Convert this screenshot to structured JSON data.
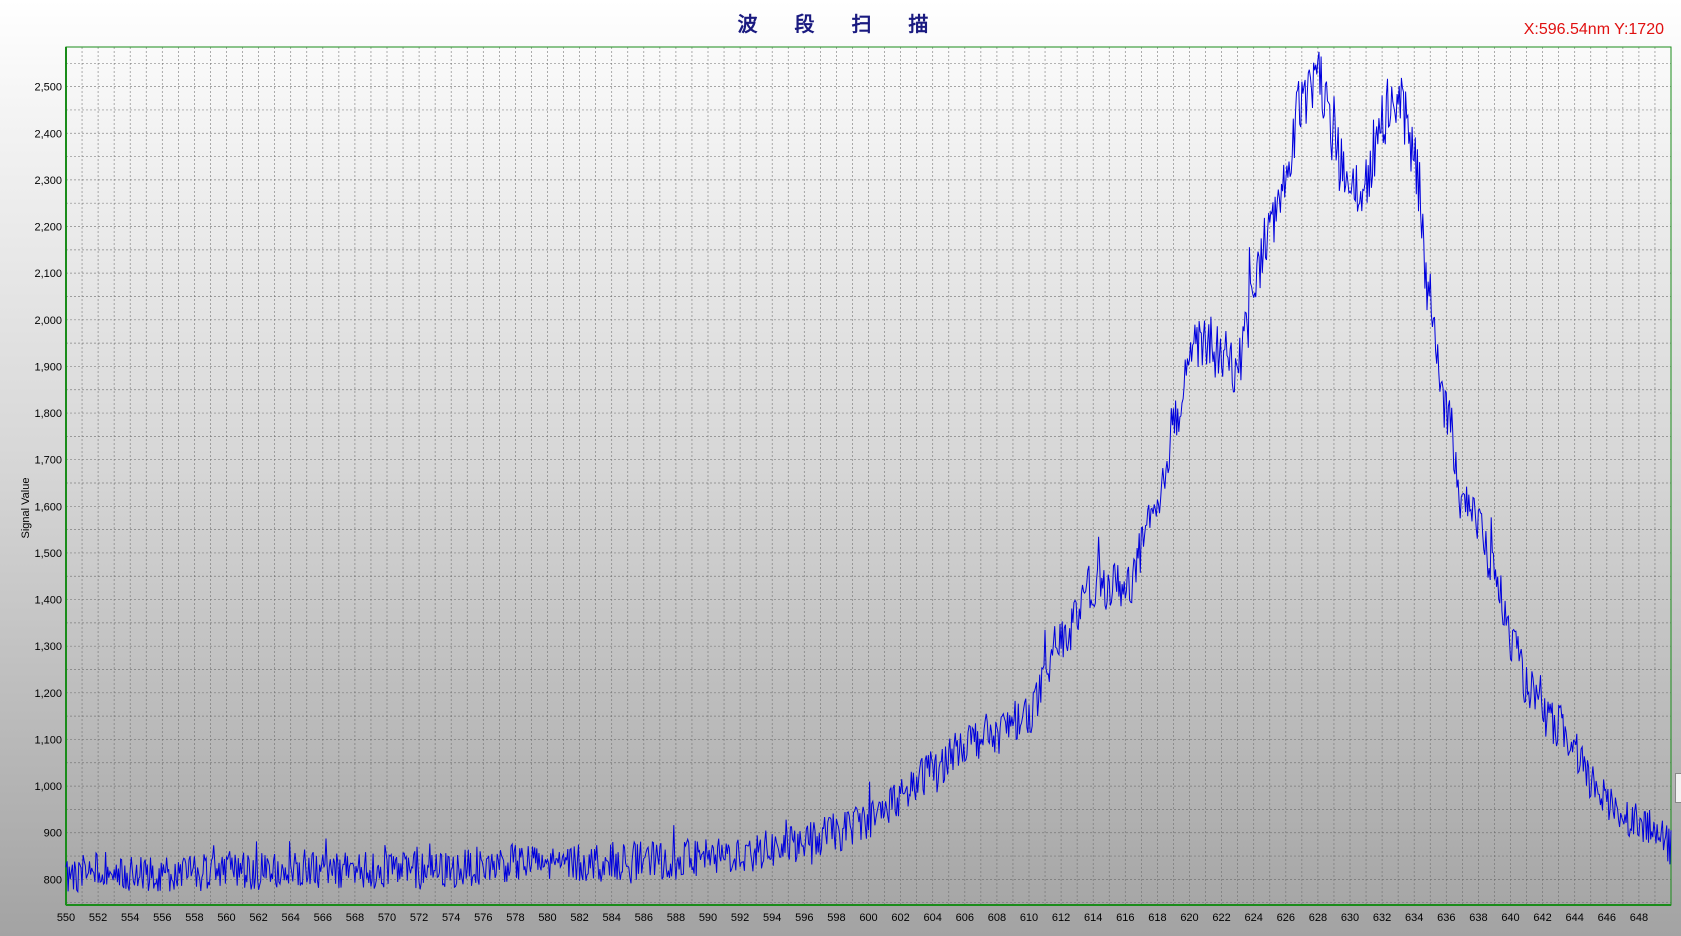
{
  "title": "波 段 扫 描",
  "readout": {
    "text": "X:596.54nm  Y:1720",
    "color": "#e01010"
  },
  "colors": {
    "series": "#0000dd",
    "axis": "#1a8c1a",
    "grid": "#666666",
    "title": "#1a1a80"
  },
  "chart_data": {
    "type": "line",
    "title": "波 段 扫 描",
    "xlabel": "",
    "ylabel": "Signal Value",
    "xlim": [
      550,
      650
    ],
    "ylim": [
      745,
      2585
    ],
    "grid": true,
    "legend": "none",
    "x_ticks": [
      550,
      552,
      554,
      556,
      558,
      560,
      562,
      564,
      566,
      568,
      570,
      572,
      574,
      576,
      578,
      580,
      582,
      584,
      586,
      588,
      590,
      592,
      594,
      596,
      598,
      600,
      602,
      604,
      606,
      608,
      610,
      612,
      614,
      616,
      618,
      620,
      622,
      624,
      626,
      628,
      630,
      632,
      634,
      636,
      638,
      640,
      642,
      644,
      646,
      648
    ],
    "y_ticks": [
      800,
      900,
      1000,
      1100,
      1200,
      1300,
      1400,
      1500,
      1600,
      1700,
      1800,
      1900,
      2000,
      2100,
      2200,
      2300,
      2400,
      2500
    ],
    "y_tick_labels": [
      "800",
      "900",
      "1,000",
      "1,100",
      "1,200",
      "1,300",
      "1,400",
      "1,500",
      "1,600",
      "1,700",
      "1,800",
      "1,900",
      "2,000",
      "2,100",
      "2,200",
      "2,300",
      "2,400",
      "2,500"
    ],
    "series": [
      {
        "x": [
          550,
          552,
          554,
          556,
          558,
          560,
          562,
          564,
          566,
          568,
          570,
          572,
          574,
          576,
          578,
          580,
          582,
          584,
          586,
          588,
          590,
          592,
          594,
          596,
          598,
          600,
          602,
          604,
          606,
          608,
          610,
          612,
          614,
          616,
          618,
          619,
          620,
          621,
          622,
          623,
          624,
          625,
          626,
          627,
          628,
          629,
          630,
          631,
          632,
          633,
          634,
          635,
          636,
          637,
          638,
          639,
          640,
          641,
          642,
          643,
          644,
          645,
          646,
          647,
          648,
          649,
          650
        ],
        "values": [
          810,
          820,
          815,
          815,
          815,
          820,
          818,
          818,
          820,
          820,
          820,
          818,
          820,
          830,
          835,
          835,
          835,
          840,
          840,
          840,
          845,
          855,
          865,
          880,
          900,
          930,
          975,
          1035,
          1095,
          1115,
          1160,
          1310,
          1430,
          1430,
          1580,
          1770,
          1930,
          1960,
          1920,
          1900,
          2080,
          2190,
          2330,
          2480,
          2530,
          2370,
          2270,
          2290,
          2440,
          2480,
          2350,
          2050,
          1800,
          1640,
          1560,
          1460,
          1320,
          1220,
          1150,
          1130,
          1070,
          1010,
          970,
          940,
          925,
          900,
          870
        ]
      }
    ]
  }
}
